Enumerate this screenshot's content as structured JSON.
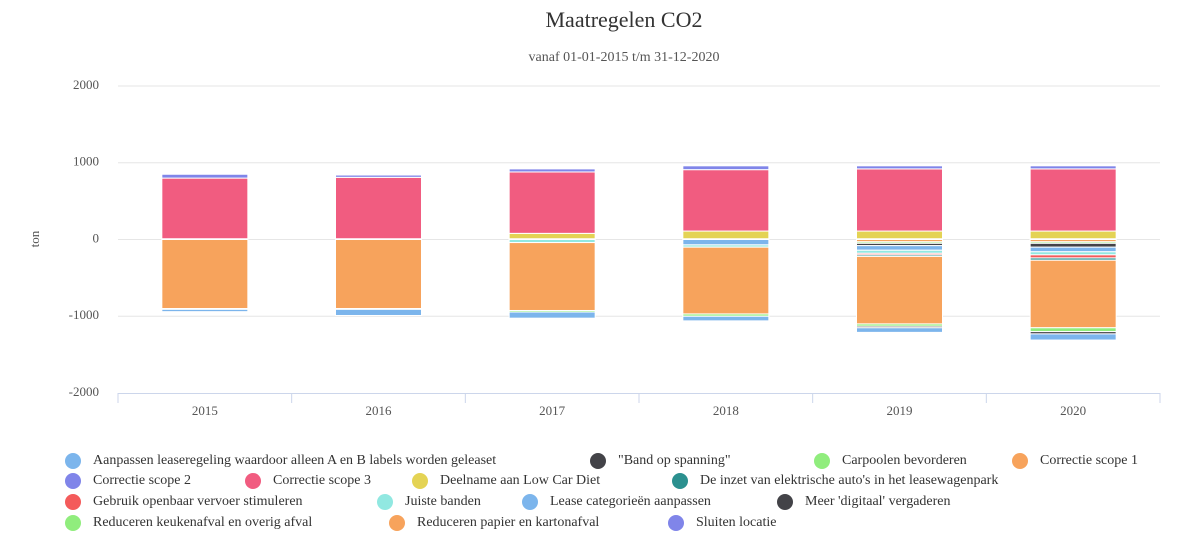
{
  "chart_data": {
    "type": "stacked_bar",
    "title": "Maatregelen CO2",
    "subtitle": "vanaf 01-01-2015 t/m 31-12-2020",
    "y_axis_label": "ton",
    "categories": [
      "2015",
      "2016",
      "2017",
      "2018",
      "2019",
      "2020"
    ],
    "ylim": [
      -2000,
      2000
    ],
    "yticks": [
      -2000,
      -1000,
      0,
      1000,
      2000
    ],
    "grid": true,
    "legend": "bottom",
    "series": [
      {
        "name": "Aanpassen leaseregeling waardoor alleen A en B labels worden geleaset",
        "color": "#7cb5ec",
        "values": [
          -30,
          -80,
          -80,
          -60,
          -60,
          -80
        ]
      },
      {
        "name": "\"Band op spanning\"",
        "color": "#434348",
        "values": [
          0,
          0,
          0,
          0,
          -20,
          -30
        ]
      },
      {
        "name": "Carpoolen bevorderen",
        "color": "#90ed7d",
        "values": [
          -10,
          -10,
          -20,
          -30,
          -30,
          -50
        ]
      },
      {
        "name": "Correctie scope 1",
        "color": "#f7a35c",
        "values": [
          -900,
          -900,
          -885,
          -870,
          -880,
          -880
        ]
      },
      {
        "name": "Correctie scope 2",
        "color": "#8085e9",
        "values": [
          50,
          30,
          40,
          50,
          40,
          40
        ]
      },
      {
        "name": "Correctie scope 3",
        "color": "#f15c80",
        "values": [
          790,
          800,
          800,
          800,
          810,
          810
        ]
      },
      {
        "name": "Deelname aan Low Car Diet",
        "color": "#e4d354",
        "values": [
          0,
          0,
          70,
          100,
          100,
          100
        ]
      },
      {
        "name": "De inzet van elektrische auto's in het leasewagenpark",
        "color": "#2b908f",
        "values": [
          0,
          0,
          0,
          0,
          -20,
          -30
        ]
      },
      {
        "name": "Gebruik openbaar vervoer stimuleren",
        "color": "#f45b5b",
        "values": [
          0,
          0,
          0,
          0,
          -20,
          -40
        ]
      },
      {
        "name": "Juiste banden",
        "color": "#91e8e1",
        "values": [
          0,
          0,
          -40,
          -30,
          -40,
          -40
        ]
      },
      {
        "name": "Lease categorieën aanpassen",
        "color": "#7cb5ec",
        "values": [
          0,
          0,
          0,
          -70,
          -60,
          -60
        ]
      },
      {
        "name": "Meer 'digitaal' vergaderen",
        "color": "#434348",
        "values": [
          0,
          0,
          0,
          0,
          -30,
          -50
        ]
      },
      {
        "name": "Reduceren keukenafval en overig afval",
        "color": "#90ed7d",
        "values": [
          0,
          0,
          0,
          0,
          -20,
          -20
        ]
      },
      {
        "name": "Reduceren papier en kartonafval",
        "color": "#f7a35c",
        "values": [
          0,
          0,
          0,
          0,
          -30,
          -30
        ]
      },
      {
        "name": "Sluiten locatie",
        "color": "#8085e9",
        "values": [
          10,
          10,
          10,
          10,
          10,
          10
        ]
      }
    ]
  }
}
